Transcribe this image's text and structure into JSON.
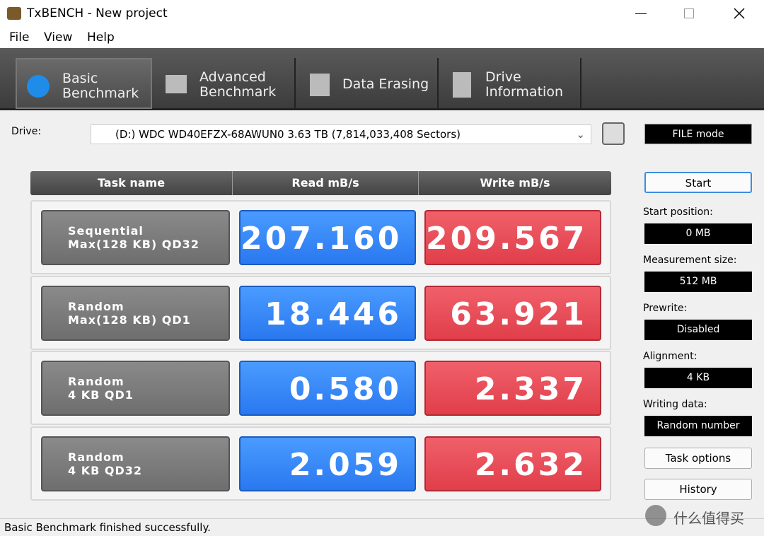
{
  "window": {
    "title": "TxBENCH - New project"
  },
  "menu": [
    "File",
    "View",
    "Help"
  ],
  "tabs": [
    {
      "line1": "Basic",
      "line2": "Benchmark"
    },
    {
      "line1": "Advanced",
      "line2": "Benchmark"
    },
    {
      "line1": "Data Erasing"
    },
    {
      "line1": "Drive",
      "line2": "Information"
    }
  ],
  "drive": {
    "label": "Drive:",
    "value": "(D:) WDC WD40EFZX-68AWUN0  3.63 TB (7,814,033,408 Sectors)"
  },
  "mode": "FILE mode",
  "table": {
    "header": [
      "Task name",
      "Read mB/s",
      "Write mB/s"
    ],
    "rows": [
      {
        "name1": "Sequential",
        "name2": "Max(128 KB) QD32",
        "read": "207.160",
        "write": "209.567"
      },
      {
        "name1": "Random",
        "name2": "Max(128 KB) QD1",
        "read": "18.446",
        "write": "63.921"
      },
      {
        "name1": "Random",
        "name2": "4 KB QD1",
        "read": "0.580",
        "write": "2.337"
      },
      {
        "name1": "Random",
        "name2": "4 KB QD32",
        "read": "2.059",
        "write": "2.632"
      }
    ]
  },
  "side": {
    "start": "Start",
    "fields": [
      {
        "label": "Start position:",
        "value": "0 MB"
      },
      {
        "label": "Measurement size:",
        "value": "512 MB"
      },
      {
        "label": "Prewrite:",
        "value": "Disabled"
      },
      {
        "label": "Alignment:",
        "value": "4 KB"
      },
      {
        "label": "Writing data:",
        "value": "Random number"
      }
    ],
    "buttons": [
      "Task options",
      "History"
    ]
  },
  "status": "Basic Benchmark finished successfully.",
  "watermark": "什么值得买"
}
